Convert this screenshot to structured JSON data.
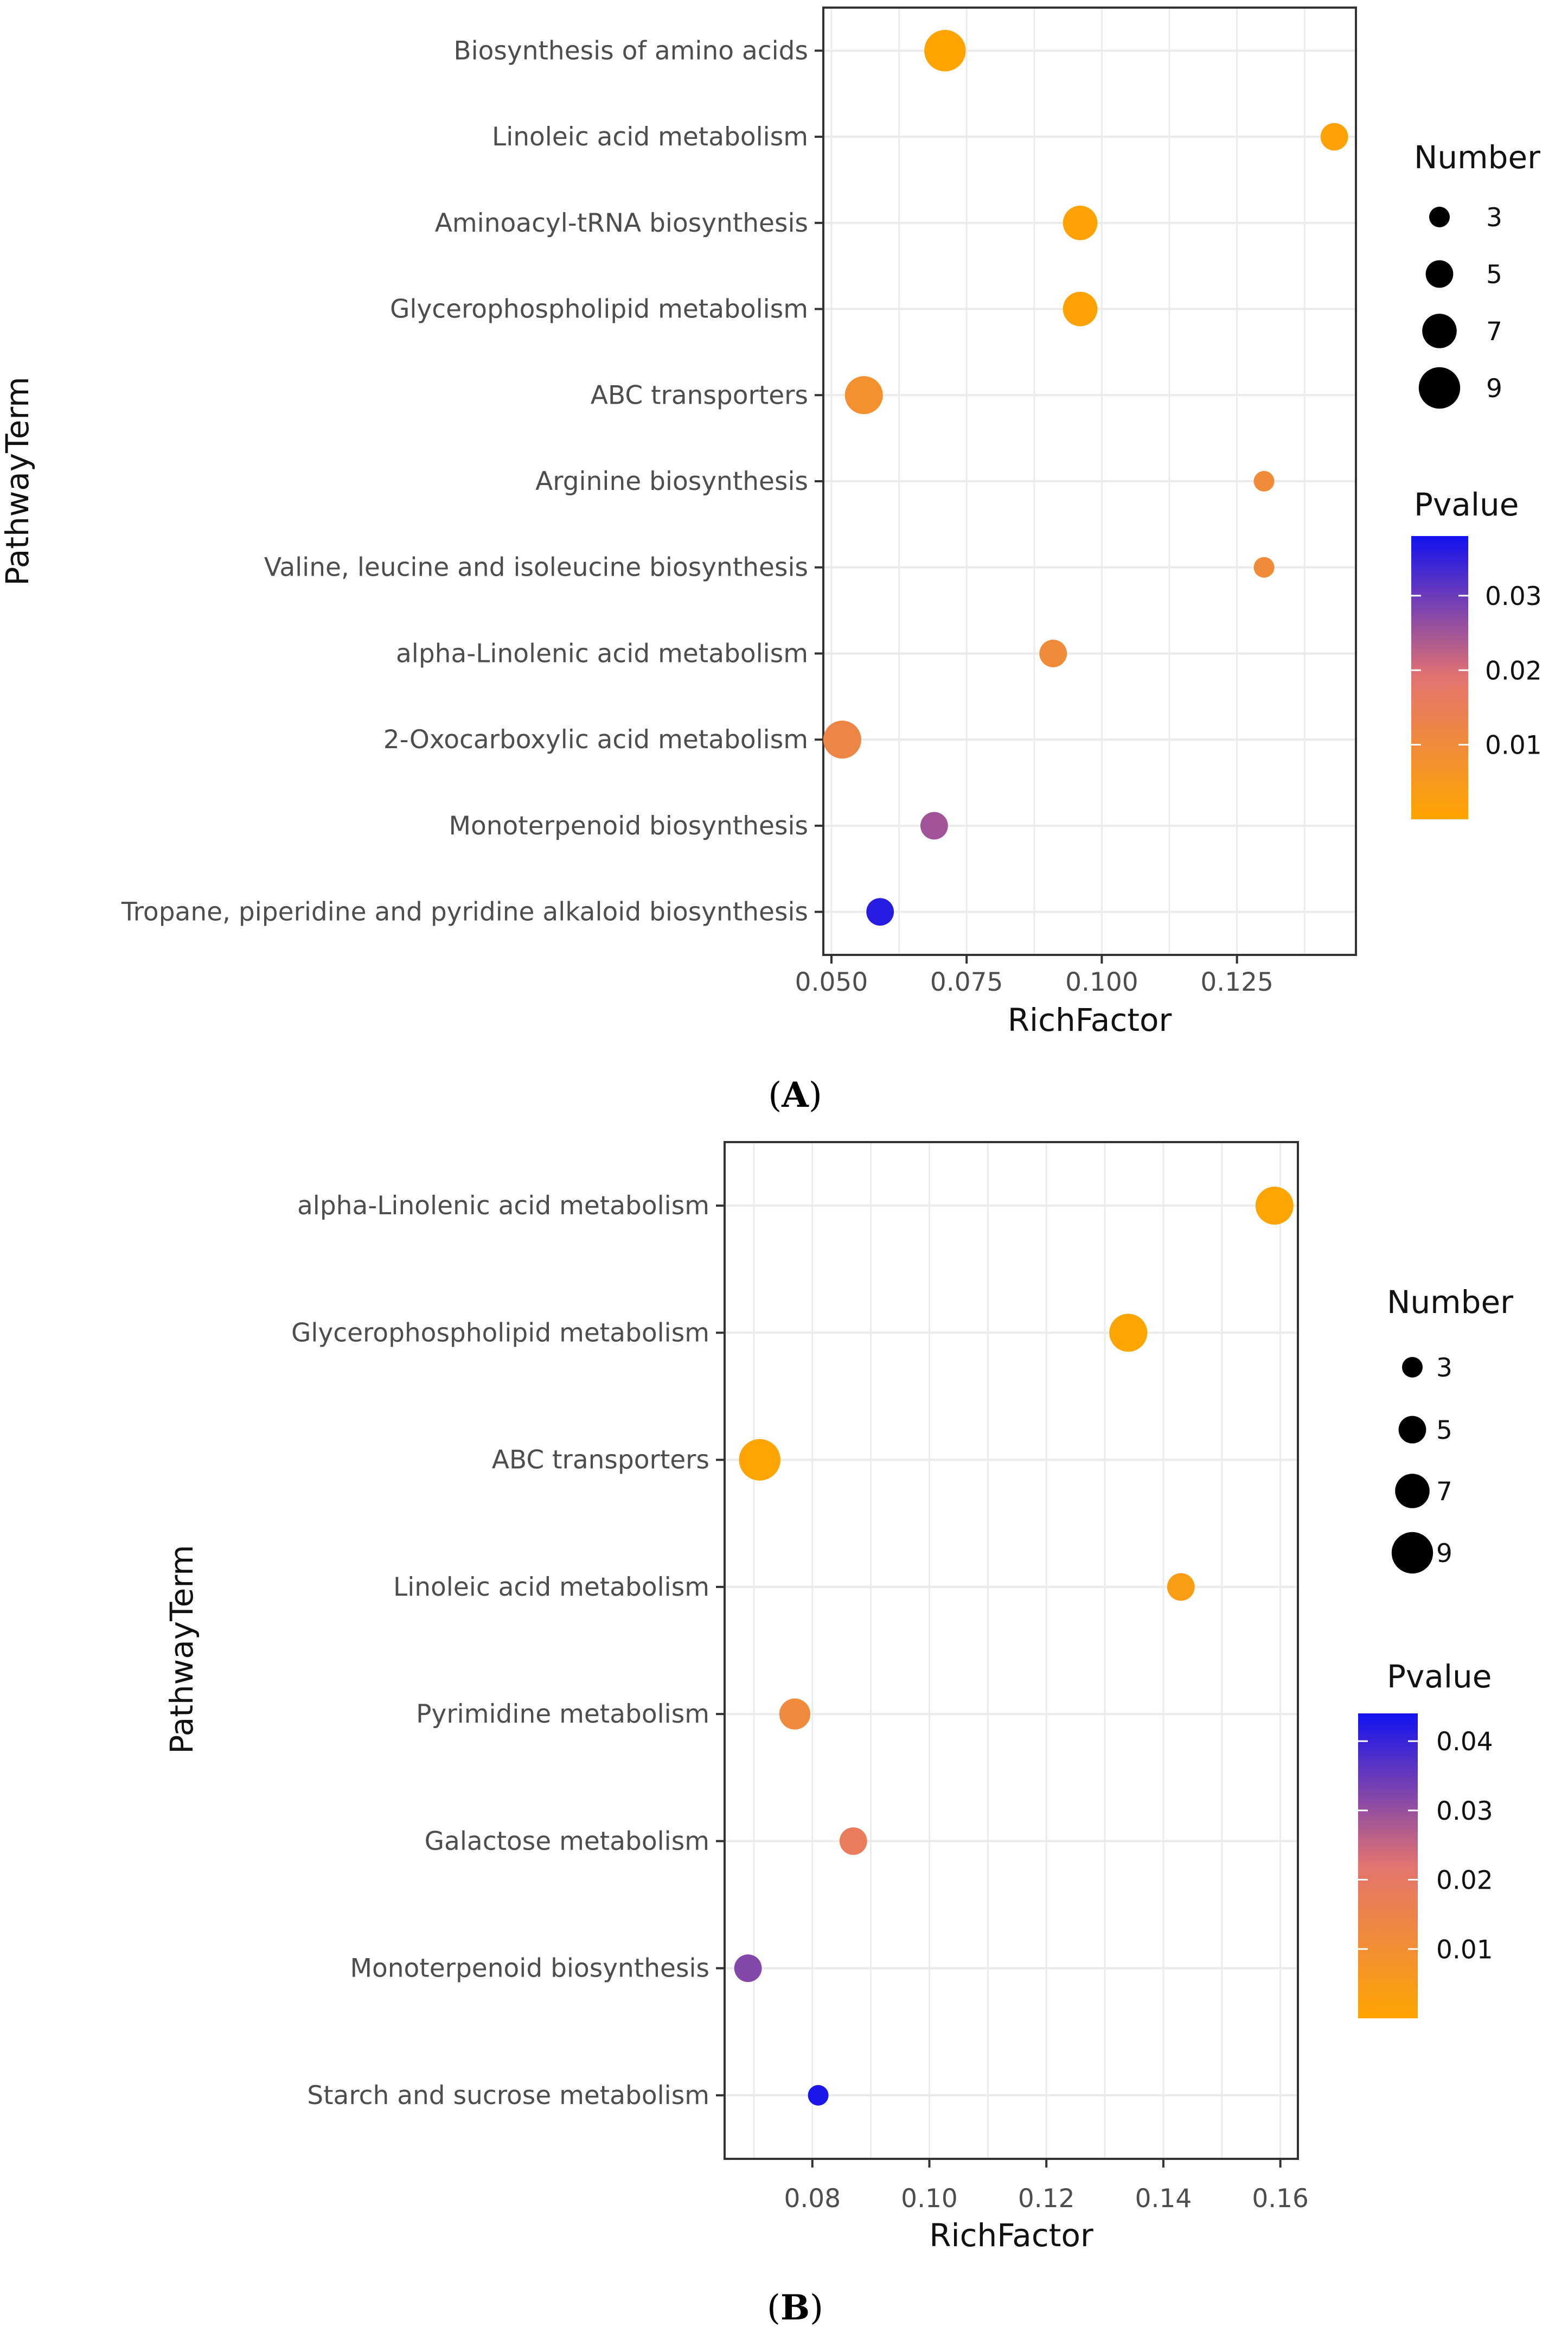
{
  "chart_data": [
    {
      "type": "scatter",
      "panel_label": "A",
      "xlabel": "RichFactor",
      "ylabel": "PathwayTerm",
      "xlim": [
        0.0485,
        0.147
      ],
      "xticks": [
        0.05,
        0.075,
        0.1,
        0.125
      ],
      "xtick_labels": [
        "0.050",
        "0.075",
        "0.100",
        "0.125"
      ],
      "categories": [
        "Biosynthesis of amino acids",
        "Linoleic acid metabolism",
        "Aminoacyl-tRNA biosynthesis",
        "Glycerophospholipid metabolism",
        "ABC transporters",
        "Arginine biosynthesis",
        "Valine, leucine and isoleucine biosynthesis",
        "alpha-Linolenic acid metabolism",
        "2-Oxocarboxylic acid metabolism",
        "Monoterpenoid biosynthesis",
        "Tropane, piperidine and pyridine alkaloid biosynthesis"
      ],
      "richfactor": [
        0.071,
        0.143,
        0.096,
        0.096,
        0.056,
        0.13,
        0.13,
        0.091,
        0.052,
        0.069,
        0.059
      ],
      "number": [
        9,
        5,
        7,
        7,
        8,
        3,
        3,
        5,
        8,
        5,
        5
      ],
      "pvalue": [
        0.0002,
        0.001,
        0.001,
        0.001,
        0.008,
        0.01,
        0.01,
        0.01,
        0.012,
        0.025,
        0.036
      ],
      "size_legend": {
        "title": "Number",
        "values": [
          3,
          5,
          7,
          9
        ],
        "labels": [
          "3",
          "5",
          "7",
          "9"
        ]
      },
      "color_legend": {
        "title": "Pvalue",
        "range": [
          0,
          0.038
        ],
        "ticks": [
          0.01,
          0.02,
          0.03
        ],
        "tick_labels": [
          "0.01",
          "0.02",
          "0.03"
        ]
      }
    },
    {
      "type": "scatter",
      "panel_label": "B",
      "xlabel": "RichFactor",
      "ylabel": "PathwayTerm",
      "xlim": [
        0.065,
        0.163
      ],
      "xticks": [
        0.08,
        0.1,
        0.12,
        0.14,
        0.16
      ],
      "xtick_labels": [
        "0.08",
        "0.10",
        "0.12",
        "0.14",
        "0.16"
      ],
      "categories": [
        "alpha-Linolenic acid metabolism",
        "Glycerophospholipid metabolism",
        "ABC transporters",
        "Linoleic acid metabolism",
        "Pyrimidine metabolism",
        "Galactose metabolism",
        "Monoterpenoid biosynthesis",
        "Starch and sucrose metabolism"
      ],
      "richfactor": [
        0.159,
        0.134,
        0.071,
        0.143,
        0.077,
        0.087,
        0.069,
        0.081
      ],
      "number": [
        8,
        8,
        9,
        5,
        6,
        5,
        5,
        3
      ],
      "pvalue": [
        0.0005,
        0.0005,
        0.0005,
        0.004,
        0.012,
        0.018,
        0.032,
        0.043
      ],
      "size_legend": {
        "title": "Number",
        "values": [
          3,
          5,
          7,
          9
        ],
        "labels": [
          "3",
          "5",
          "7",
          "9"
        ]
      },
      "color_legend": {
        "title": "Pvalue",
        "range": [
          0,
          0.044
        ],
        "ticks": [
          0.01,
          0.02,
          0.03,
          0.04
        ],
        "tick_labels": [
          "0.01",
          "0.02",
          "0.03",
          "0.04"
        ]
      }
    }
  ],
  "colors": {
    "low": "#FFA500",
    "mid": "#E3736F",
    "high": "#1212F0",
    "grid": "#EBEBEB",
    "frame": "#333333"
  }
}
